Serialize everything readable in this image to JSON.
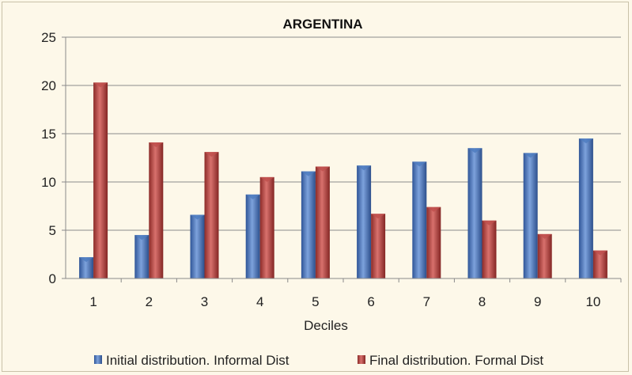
{
  "chart_data": {
    "type": "bar",
    "title": "ARGENTINA",
    "xlabel": "Deciles",
    "ylabel": "",
    "categories": [
      "1",
      "2",
      "3",
      "4",
      "5",
      "6",
      "7",
      "8",
      "9",
      "10"
    ],
    "ylim": [
      0,
      25
    ],
    "yticks": [
      "0",
      "5",
      "10",
      "15",
      "20",
      "25"
    ],
    "grid": true,
    "legend_position": "bottom",
    "series": [
      {
        "name": "Initial distribution. Informal Dist",
        "color": "#4f7cc0",
        "values": [
          2.2,
          4.5,
          6.6,
          8.7,
          11.1,
          11.7,
          12.1,
          13.5,
          13.0,
          14.5
        ]
      },
      {
        "name": "Final distribution. Formal Dist",
        "color": "#c0504d",
        "values": [
          20.3,
          14.1,
          13.1,
          10.5,
          11.6,
          6.7,
          7.4,
          6.0,
          4.6,
          2.9
        ]
      }
    ]
  }
}
